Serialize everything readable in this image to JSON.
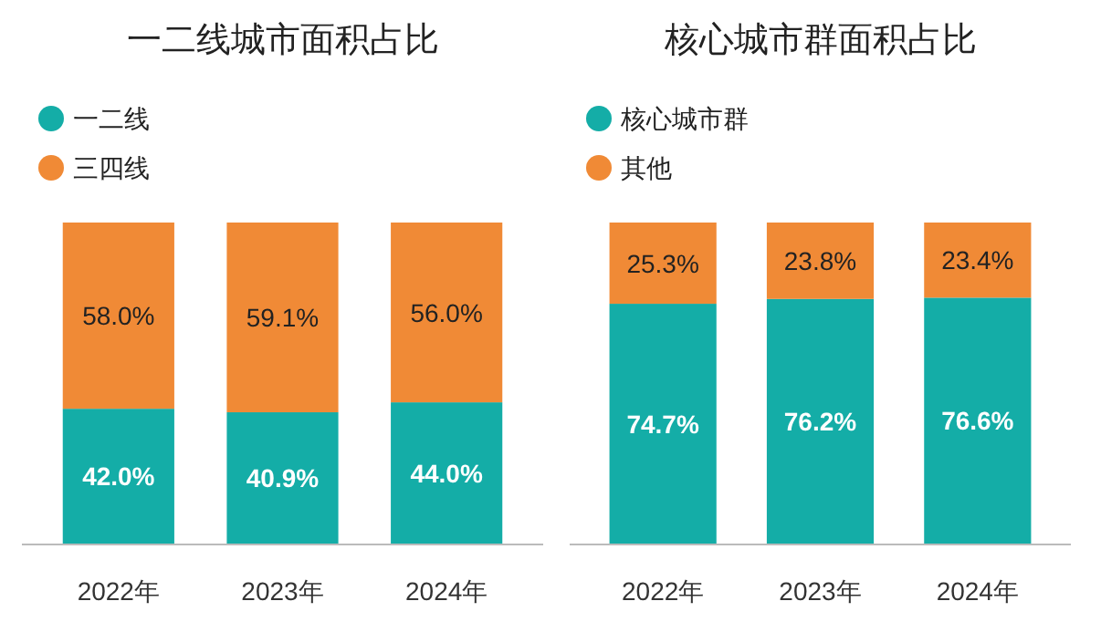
{
  "chart_data": [
    {
      "type": "bar",
      "title": "一二线城市面积占比",
      "stacked": true,
      "legend": "top left",
      "categories": [
        "2022年",
        "2023年",
        "2024年"
      ],
      "series": [
        {
          "name": "一二线",
          "color": "#14ada7",
          "values": [
            42.0,
            40.9,
            44.0
          ],
          "value_labels": [
            "42.0%",
            "40.9%",
            "44.0%"
          ]
        },
        {
          "name": "三四线",
          "color": "#f08a36",
          "values": [
            58.0,
            59.1,
            56.0
          ],
          "value_labels": [
            "58.0%",
            "59.1%",
            "56.0%"
          ]
        }
      ]
    },
    {
      "type": "bar",
      "title": "核心城市群面积占比",
      "stacked": true,
      "legend": "top left",
      "categories": [
        "2022年",
        "2023年",
        "2024年"
      ],
      "series": [
        {
          "name": "核心城市群",
          "color": "#14ada7",
          "values": [
            74.7,
            76.2,
            76.6
          ],
          "value_labels": [
            "74.7%",
            "76.2%",
            "76.6%"
          ]
        },
        {
          "name": "其他",
          "color": "#f08a36",
          "values": [
            25.3,
            23.8,
            23.4
          ],
          "value_labels": [
            "25.3%",
            "23.8%",
            "23.4%"
          ]
        }
      ]
    }
  ]
}
